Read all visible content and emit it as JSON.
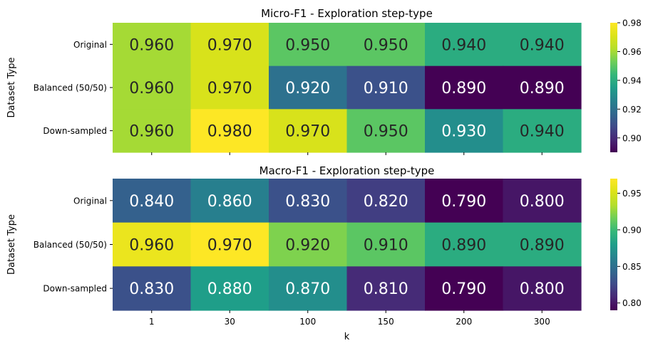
{
  "chart_data": [
    {
      "type": "heatmap",
      "title": "Micro-F1 - Exploration step-type",
      "xlabel": "",
      "ylabel": "Dataset Type",
      "x_categories": [
        "1",
        "30",
        "100",
        "150",
        "200",
        "300"
      ],
      "y_categories": [
        "Original",
        "Balanced (50/50)",
        "Down-sampled"
      ],
      "values": [
        [
          0.96,
          0.97,
          0.95,
          0.95,
          0.94,
          0.94
        ],
        [
          0.96,
          0.97,
          0.92,
          0.91,
          0.89,
          0.89
        ],
        [
          0.96,
          0.98,
          0.97,
          0.95,
          0.93,
          0.94
        ]
      ],
      "value_format": "0.000",
      "show_xtick_labels": false,
      "colormap": "viridis",
      "colorbar": {
        "vmin": 0.89,
        "vmax": 0.98,
        "ticks": [
          "0.90",
          "0.92",
          "0.94",
          "0.96",
          "0.98"
        ]
      }
    },
    {
      "type": "heatmap",
      "title": "Macro-F1 - Exploration step-type",
      "xlabel": "k",
      "ylabel": "Dataset Type",
      "x_categories": [
        "1",
        "30",
        "100",
        "150",
        "200",
        "300"
      ],
      "y_categories": [
        "Original",
        "Balanced (50/50)",
        "Down-sampled"
      ],
      "values": [
        [
          0.84,
          0.86,
          0.83,
          0.82,
          0.79,
          0.8
        ],
        [
          0.96,
          0.97,
          0.92,
          0.91,
          0.89,
          0.89
        ],
        [
          0.83,
          0.88,
          0.87,
          0.81,
          0.79,
          0.8
        ]
      ],
      "value_format": "0.000",
      "show_xtick_labels": true,
      "colormap": "viridis",
      "colorbar": {
        "vmin": 0.79,
        "vmax": 0.97,
        "ticks": [
          "0.80",
          "0.85",
          "0.90",
          "0.95"
        ]
      }
    }
  ]
}
